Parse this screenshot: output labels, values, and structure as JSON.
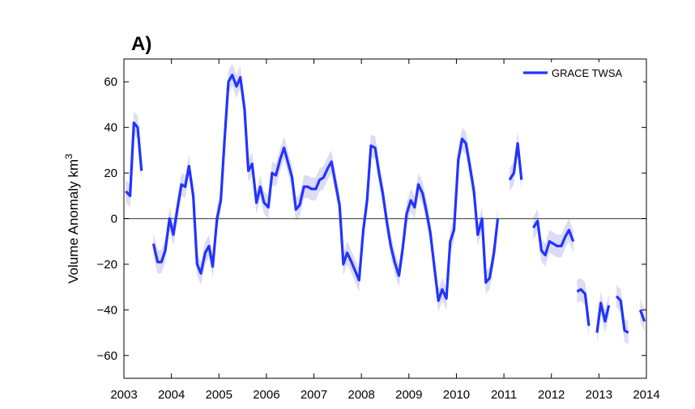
{
  "panel_label": "A)",
  "chart_data": {
    "type": "line",
    "title": "",
    "xlabel": "",
    "ylabel": "Volume Anomaly km",
    "ylabel_superscript": "3",
    "xlim": [
      2003,
      2014
    ],
    "ylim": [
      -70,
      70
    ],
    "xticks": [
      2003,
      2004,
      2005,
      2006,
      2007,
      2008,
      2009,
      2010,
      2011,
      2012,
      2013,
      2014
    ],
    "yticks": [
      -60,
      -40,
      -20,
      0,
      20,
      40,
      60
    ],
    "grid": false,
    "zero_line": true,
    "legend": {
      "position": "top-right",
      "entries": [
        "GRACE TWSA"
      ]
    },
    "colors": {
      "series": "#2233ff",
      "band": "#dcdcf5",
      "zero_line": "#555555"
    },
    "uncertainty_halfwidth": 5,
    "series": [
      {
        "name": "GRACE TWSA",
        "segments": [
          [
            [
              2003.04,
              12
            ],
            [
              2003.13,
              10
            ],
            [
              2003.21,
              42
            ],
            [
              2003.29,
              40
            ],
            [
              2003.37,
              21
            ]
          ],
          [
            [
              2003.62,
              -11
            ],
            [
              2003.71,
              -19
            ],
            [
              2003.79,
              -19
            ],
            [
              2003.87,
              -14
            ],
            [
              2003.96,
              0
            ],
            [
              2004.04,
              -7
            ],
            [
              2004.13,
              5
            ],
            [
              2004.21,
              15
            ],
            [
              2004.29,
              14
            ],
            [
              2004.37,
              23
            ],
            [
              2004.46,
              10
            ],
            [
              2004.54,
              -20
            ],
            [
              2004.62,
              -24
            ],
            [
              2004.71,
              -15
            ],
            [
              2004.79,
              -12
            ],
            [
              2004.87,
              -21
            ],
            [
              2004.96,
              0
            ],
            [
              2005.04,
              8
            ],
            [
              2005.12,
              35
            ],
            [
              2005.2,
              60
            ],
            [
              2005.28,
              63
            ],
            [
              2005.37,
              58
            ],
            [
              2005.45,
              62
            ],
            [
              2005.54,
              48
            ],
            [
              2005.62,
              21
            ],
            [
              2005.7,
              24
            ],
            [
              2005.79,
              7
            ],
            [
              2005.87,
              14
            ],
            [
              2005.95,
              7
            ],
            [
              2006.04,
              5
            ],
            [
              2006.12,
              20
            ],
            [
              2006.2,
              19
            ],
            [
              2006.29,
              26
            ],
            [
              2006.37,
              31
            ],
            [
              2006.45,
              25
            ],
            [
              2006.54,
              18
            ],
            [
              2006.62,
              4
            ],
            [
              2006.7,
              6
            ],
            [
              2006.79,
              14
            ],
            [
              2006.87,
              14
            ],
            [
              2006.95,
              13
            ],
            [
              2007.04,
              13
            ],
            [
              2007.12,
              17
            ],
            [
              2007.2,
              18
            ],
            [
              2007.29,
              22
            ],
            [
              2007.37,
              25
            ],
            [
              2007.45,
              16
            ],
            [
              2007.54,
              6
            ],
            [
              2007.62,
              -20
            ],
            [
              2007.7,
              -15
            ],
            [
              2007.79,
              -19
            ],
            [
              2007.87,
              -23
            ],
            [
              2007.95,
              -27
            ],
            [
              2008.04,
              -5
            ],
            [
              2008.12,
              8
            ],
            [
              2008.2,
              32
            ],
            [
              2008.29,
              31
            ],
            [
              2008.37,
              20
            ],
            [
              2008.45,
              11
            ],
            [
              2008.54,
              -2
            ],
            [
              2008.62,
              -12
            ],
            [
              2008.7,
              -19
            ],
            [
              2008.79,
              -25
            ],
            [
              2008.87,
              -13
            ],
            [
              2008.95,
              2
            ],
            [
              2009.04,
              8
            ],
            [
              2009.12,
              5
            ],
            [
              2009.2,
              15
            ],
            [
              2009.29,
              11
            ],
            [
              2009.37,
              3
            ],
            [
              2009.45,
              -6
            ],
            [
              2009.54,
              -22
            ],
            [
              2009.62,
              -36
            ],
            [
              2009.7,
              -31
            ],
            [
              2009.79,
              -35
            ],
            [
              2009.87,
              -10
            ],
            [
              2009.95,
              -5
            ],
            [
              2010.04,
              26
            ],
            [
              2010.12,
              35
            ],
            [
              2010.2,
              33
            ],
            [
              2010.29,
              22
            ],
            [
              2010.37,
              12
            ],
            [
              2010.45,
              -7
            ],
            [
              2010.54,
              0
            ],
            [
              2010.62,
              -28
            ],
            [
              2010.7,
              -26
            ],
            [
              2010.79,
              -15
            ],
            [
              2010.87,
              0
            ]
          ],
          [
            [
              2011.12,
              17
            ],
            [
              2011.21,
              20
            ],
            [
              2011.29,
              33
            ],
            [
              2011.37,
              17
            ]
          ],
          [
            [
              2011.62,
              -4
            ],
            [
              2011.71,
              -1
            ],
            [
              2011.79,
              -14
            ],
            [
              2011.87,
              -16
            ],
            [
              2011.96,
              -10
            ],
            [
              2012.04,
              -11
            ],
            [
              2012.12,
              -12
            ],
            [
              2012.21,
              -12
            ],
            [
              2012.29,
              -8
            ],
            [
              2012.37,
              -5
            ],
            [
              2012.46,
              -10
            ]
          ],
          [
            [
              2012.54,
              -32
            ],
            [
              2012.62,
              -31
            ],
            [
              2012.71,
              -33
            ],
            [
              2012.79,
              -47
            ]
          ],
          [
            [
              2012.96,
              -50
            ],
            [
              2013.04,
              -37
            ],
            [
              2013.13,
              -45
            ],
            [
              2013.21,
              -38
            ]
          ],
          [
            [
              2013.37,
              -34
            ],
            [
              2013.46,
              -36
            ],
            [
              2013.54,
              -49
            ],
            [
              2013.62,
              -50
            ]
          ],
          [
            [
              2013.87,
              -40
            ],
            [
              2013.96,
              -45
            ]
          ]
        ]
      }
    ]
  }
}
